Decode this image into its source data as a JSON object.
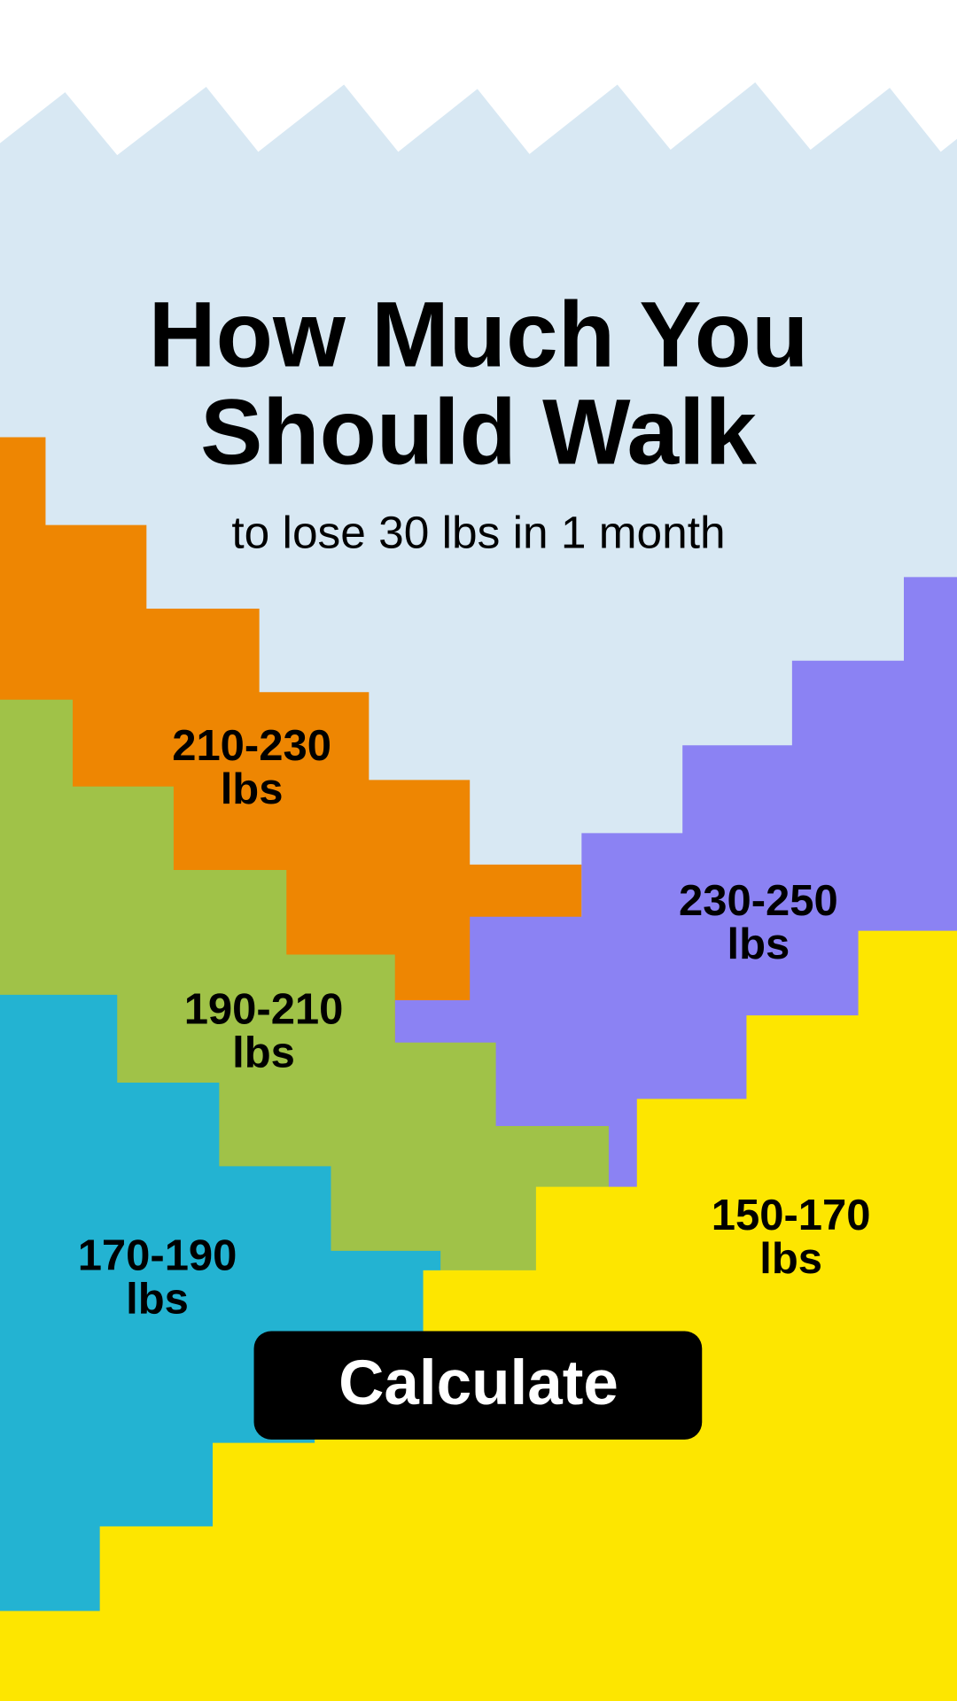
{
  "header": {
    "title": [
      "How Much You",
      "Should Walk"
    ],
    "subtitle": "to lose 30 lbs in 1 month"
  },
  "groups": [
    {
      "range": "210-230",
      "unit": "lbs"
    },
    {
      "range": "230-250",
      "unit": "lbs"
    },
    {
      "range": "190-210",
      "unit": "lbs"
    },
    {
      "range": "170-190",
      "unit": "lbs"
    },
    {
      "range": "150-170",
      "unit": "lbs"
    }
  ],
  "button": {
    "label": "Calculate"
  }
}
